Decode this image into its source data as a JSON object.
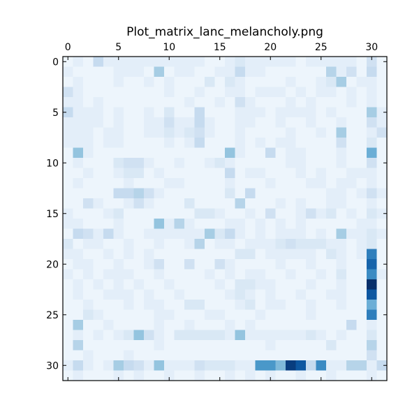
{
  "chart_data": {
    "type": "heatmap",
    "title": "Plot_matrix_lanc_melancholy.png",
    "xlabel": "",
    "ylabel": "",
    "colormap": "Blues",
    "color_low": "#f7fbff",
    "color_high": "#08306b",
    "x_axis_position": "top",
    "x_ticks": [
      0,
      5,
      10,
      15,
      20,
      25,
      30
    ],
    "y_ticks": [
      0,
      5,
      10,
      15,
      20,
      25,
      30
    ],
    "xlim": [
      -0.5,
      31.5
    ],
    "ylim": [
      31.5,
      -0.5
    ],
    "rows": 32,
    "cols": 32,
    "value_scale": [
      0,
      1
    ],
    "grid": false,
    "legend": "none",
    "matrix": [
      [
        0.05,
        0.1,
        0.05,
        0.25,
        0.1,
        0.1,
        0.1,
        0.1,
        0.1,
        0.1,
        0.1,
        0.1,
        0.1,
        0.1,
        0.05,
        0.05,
        0.1,
        0.15,
        0.1,
        0.1,
        0.1,
        0.1,
        0.1,
        0.05,
        0.1,
        0.1,
        0.1,
        0.1,
        0.1,
        0.05,
        0.2,
        0.05
      ],
      [
        0.1,
        0.05,
        0.05,
        0.05,
        0.05,
        0.1,
        0.1,
        0.1,
        0.05,
        0.35,
        0.05,
        0.1,
        0.1,
        0.05,
        0.05,
        0.1,
        0.1,
        0.25,
        0.1,
        0.1,
        0.05,
        0.05,
        0.05,
        0.05,
        0.05,
        0.05,
        0.3,
        0.1,
        0.2,
        0.05,
        0.25,
        0.05
      ],
      [
        0.05,
        0.1,
        0.05,
        0.05,
        0.05,
        0.1,
        0.05,
        0.05,
        0.1,
        0.05,
        0.1,
        0.05,
        0.05,
        0.05,
        0.15,
        0.05,
        0.15,
        0.1,
        0.05,
        0.05,
        0.05,
        0.05,
        0.1,
        0.05,
        0.05,
        0.1,
        0.15,
        0.35,
        0.05,
        0.1,
        0.1,
        0.05
      ],
      [
        0.2,
        0.1,
        0.05,
        0.05,
        0.05,
        0.05,
        0.05,
        0.05,
        0.05,
        0.05,
        0.1,
        0.05,
        0.05,
        0.1,
        0.05,
        0.05,
        0.1,
        0.1,
        0.05,
        0.1,
        0.1,
        0.1,
        0.05,
        0.1,
        0.05,
        0.1,
        0.1,
        0.05,
        0.1,
        0.05,
        0.1,
        0.05
      ],
      [
        0.1,
        0.1,
        0.05,
        0.1,
        0.05,
        0.05,
        0.05,
        0.05,
        0.05,
        0.05,
        0.05,
        0.05,
        0.1,
        0.05,
        0.05,
        0.1,
        0.05,
        0.2,
        0.1,
        0.05,
        0.05,
        0.05,
        0.1,
        0.05,
        0.1,
        0.05,
        0.05,
        0.05,
        0.1,
        0.05,
        0.1,
        0.05
      ],
      [
        0.25,
        0.1,
        0.1,
        0.1,
        0.05,
        0.1,
        0.05,
        0.05,
        0.1,
        0.05,
        0.15,
        0.05,
        0.05,
        0.25,
        0.05,
        0.05,
        0.05,
        0.1,
        0.1,
        0.1,
        0.05,
        0.1,
        0.1,
        0.1,
        0.1,
        0.05,
        0.1,
        0.05,
        0.05,
        0.05,
        0.35,
        0.1
      ],
      [
        0.1,
        0.1,
        0.1,
        0.1,
        0.05,
        0.1,
        0.05,
        0.05,
        0.1,
        0.1,
        0.2,
        0.1,
        0.1,
        0.25,
        0.1,
        0.05,
        0.05,
        0.1,
        0.1,
        0.05,
        0.05,
        0.1,
        0.05,
        0.05,
        0.1,
        0.05,
        0.05,
        0.1,
        0.05,
        0.05,
        0.2,
        0.1
      ],
      [
        0.1,
        0.1,
        0.1,
        0.05,
        0.1,
        0.1,
        0.05,
        0.05,
        0.1,
        0.1,
        0.15,
        0.1,
        0.15,
        0.2,
        0.1,
        0.05,
        0.05,
        0.1,
        0.05,
        0.05,
        0.05,
        0.05,
        0.1,
        0.05,
        0.05,
        0.1,
        0.05,
        0.35,
        0.05,
        0.05,
        0.1,
        0.2
      ],
      [
        0.1,
        0.1,
        0.1,
        0.05,
        0.1,
        0.1,
        0.05,
        0.05,
        0.05,
        0.05,
        0.1,
        0.05,
        0.1,
        0.25,
        0.05,
        0.05,
        0.05,
        0.1,
        0.05,
        0.1,
        0.05,
        0.1,
        0.1,
        0.05,
        0.05,
        0.05,
        0.05,
        0.2,
        0.05,
        0.05,
        0.15,
        0.05
      ],
      [
        0.05,
        0.4,
        0.1,
        0.05,
        0.05,
        0.05,
        0.05,
        0.05,
        0.05,
        0.05,
        0.05,
        0.05,
        0.05,
        0.05,
        0.05,
        0.05,
        0.4,
        0.1,
        0.05,
        0.05,
        0.25,
        0.05,
        0.1,
        0.1,
        0.05,
        0.05,
        0.05,
        0.1,
        0.05,
        0.05,
        0.5,
        0.05
      ],
      [
        0.05,
        0.1,
        0.05,
        0.05,
        0.05,
        0.15,
        0.2,
        0.2,
        0.1,
        0.05,
        0.05,
        0.1,
        0.05,
        0.05,
        0.1,
        0.15,
        0.1,
        0.05,
        0.05,
        0.05,
        0.05,
        0.05,
        0.1,
        0.1,
        0.05,
        0.05,
        0.05,
        0.1,
        0.05,
        0.05,
        0.2,
        0.05
      ],
      [
        0.05,
        0.05,
        0.1,
        0.05,
        0.05,
        0.1,
        0.15,
        0.15,
        0.05,
        0.1,
        0.05,
        0.05,
        0.05,
        0.05,
        0.05,
        0.05,
        0.25,
        0.05,
        0.1,
        0.1,
        0.05,
        0.05,
        0.05,
        0.1,
        0.05,
        0.1,
        0.05,
        0.05,
        0.1,
        0.1,
        0.1,
        0.05
      ],
      [
        0.05,
        0.1,
        0.05,
        0.05,
        0.05,
        0.05,
        0.1,
        0.05,
        0.05,
        0.05,
        0.1,
        0.1,
        0.05,
        0.05,
        0.05,
        0.05,
        0.1,
        0.05,
        0.05,
        0.05,
        0.1,
        0.05,
        0.05,
        0.05,
        0.1,
        0.1,
        0.05,
        0.1,
        0.1,
        0.05,
        0.1,
        0.05
      ],
      [
        0.05,
        0.05,
        0.05,
        0.05,
        0.05,
        0.25,
        0.25,
        0.3,
        0.2,
        0.1,
        0.05,
        0.05,
        0.05,
        0.05,
        0.05,
        0.05,
        0.15,
        0.05,
        0.25,
        0.05,
        0.05,
        0.05,
        0.05,
        0.05,
        0.05,
        0.05,
        0.1,
        0.1,
        0.05,
        0.1,
        0.2,
        0.1
      ],
      [
        0.05,
        0.05,
        0.2,
        0.1,
        0.05,
        0.05,
        0.1,
        0.2,
        0.1,
        0.05,
        0.05,
        0.05,
        0.15,
        0.05,
        0.05,
        0.05,
        0.05,
        0.3,
        0.05,
        0.05,
        0.05,
        0.1,
        0.05,
        0.1,
        0.05,
        0.05,
        0.1,
        0.1,
        0.05,
        0.05,
        0.1,
        0.05
      ],
      [
        0.1,
        0.05,
        0.05,
        0.05,
        0.1,
        0.15,
        0.05,
        0.05,
        0.05,
        0.05,
        0.05,
        0.05,
        0.05,
        0.15,
        0.15,
        0.1,
        0.05,
        0.05,
        0.1,
        0.05,
        0.2,
        0.05,
        0.05,
        0.1,
        0.2,
        0.1,
        0.15,
        0.05,
        0.1,
        0.05,
        0.15,
        0.1
      ],
      [
        0.1,
        0.1,
        0.05,
        0.05,
        0.05,
        0.1,
        0.05,
        0.05,
        0.05,
        0.4,
        0.1,
        0.3,
        0.1,
        0.05,
        0.05,
        0.05,
        0.1,
        0.1,
        0.05,
        0.1,
        0.05,
        0.1,
        0.05,
        0.1,
        0.05,
        0.05,
        0.05,
        0.05,
        0.05,
        0.1,
        0.1,
        0.05
      ],
      [
        0.05,
        0.25,
        0.2,
        0.1,
        0.25,
        0.1,
        0.05,
        0.05,
        0.1,
        0.1,
        0.1,
        0.1,
        0.1,
        0.1,
        0.35,
        0.15,
        0.25,
        0.1,
        0.05,
        0.1,
        0.05,
        0.1,
        0.1,
        0.1,
        0.05,
        0.1,
        0.05,
        0.35,
        0.1,
        0.1,
        0.15,
        0.1
      ],
      [
        0.15,
        0.05,
        0.1,
        0.1,
        0.05,
        0.05,
        0.1,
        0.05,
        0.05,
        0.1,
        0.05,
        0.05,
        0.1,
        0.3,
        0.05,
        0.1,
        0.1,
        0.05,
        0.1,
        0.1,
        0.1,
        0.15,
        0.2,
        0.15,
        0.15,
        0.15,
        0.1,
        0.1,
        0.05,
        0.1,
        0.15,
        0.05
      ],
      [
        0.1,
        0.1,
        0.05,
        0.05,
        0.1,
        0.05,
        0.1,
        0.05,
        0.1,
        0.05,
        0.05,
        0.05,
        0.05,
        0.05,
        0.05,
        0.05,
        0.05,
        0.15,
        0.15,
        0.05,
        0.1,
        0.1,
        0.1,
        0.1,
        0.1,
        0.05,
        0.15,
        0.1,
        0.05,
        0.1,
        0.7,
        0.05
      ],
      [
        0.05,
        0.1,
        0.1,
        0.05,
        0.05,
        0.1,
        0.05,
        0.05,
        0.1,
        0.2,
        0.05,
        0.05,
        0.2,
        0.05,
        0.05,
        0.2,
        0.1,
        0.05,
        0.05,
        0.05,
        0.05,
        0.1,
        0.05,
        0.05,
        0.1,
        0.05,
        0.05,
        0.1,
        0.05,
        0.05,
        0.8,
        0.05
      ],
      [
        0.1,
        0.05,
        0.1,
        0.05,
        0.1,
        0.1,
        0.1,
        0.05,
        0.05,
        0.1,
        0.05,
        0.05,
        0.05,
        0.05,
        0.1,
        0.05,
        0.1,
        0.05,
        0.1,
        0.1,
        0.05,
        0.05,
        0.1,
        0.05,
        0.05,
        0.1,
        0.05,
        0.15,
        0.05,
        0.05,
        0.65,
        0.1
      ],
      [
        0.05,
        0.1,
        0.05,
        0.1,
        0.05,
        0.1,
        0.05,
        0.1,
        0.05,
        0.05,
        0.1,
        0.05,
        0.05,
        0.05,
        0.05,
        0.1,
        0.05,
        0.15,
        0.15,
        0.1,
        0.1,
        0.05,
        0.05,
        0.05,
        0.1,
        0.05,
        0.05,
        0.1,
        0.05,
        0.05,
        1.0,
        0.05
      ],
      [
        0.05,
        0.1,
        0.05,
        0.05,
        0.1,
        0.1,
        0.1,
        0.05,
        0.1,
        0.05,
        0.05,
        0.1,
        0.05,
        0.05,
        0.05,
        0.05,
        0.1,
        0.15,
        0.1,
        0.05,
        0.1,
        0.05,
        0.05,
        0.1,
        0.05,
        0.05,
        0.1,
        0.1,
        0.05,
        0.05,
        0.85,
        0.05
      ],
      [
        0.05,
        0.05,
        0.1,
        0.05,
        0.05,
        0.05,
        0.1,
        0.05,
        0.1,
        0.1,
        0.05,
        0.05,
        0.15,
        0.15,
        0.05,
        0.05,
        0.05,
        0.1,
        0.15,
        0.05,
        0.1,
        0.1,
        0.05,
        0.05,
        0.1,
        0.05,
        0.05,
        0.1,
        0.05,
        0.05,
        0.5,
        0.05
      ],
      [
        0.05,
        0.05,
        0.15,
        0.1,
        0.05,
        0.05,
        0.05,
        0.05,
        0.05,
        0.1,
        0.1,
        0.05,
        0.05,
        0.05,
        0.1,
        0.1,
        0.05,
        0.05,
        0.05,
        0.1,
        0.05,
        0.05,
        0.05,
        0.05,
        0.1,
        0.05,
        0.05,
        0.05,
        0.05,
        0.05,
        0.7,
        0.05
      ],
      [
        0.05,
        0.35,
        0.05,
        0.05,
        0.1,
        0.05,
        0.05,
        0.05,
        0.05,
        0.1,
        0.05,
        0.05,
        0.1,
        0.05,
        0.05,
        0.05,
        0.1,
        0.05,
        0.1,
        0.05,
        0.05,
        0.05,
        0.05,
        0.05,
        0.05,
        0.05,
        0.05,
        0.05,
        0.25,
        0.05,
        0.1,
        0.05
      ],
      [
        0.05,
        0.1,
        0.05,
        0.1,
        0.05,
        0.1,
        0.15,
        0.4,
        0.2,
        0.1,
        0.05,
        0.15,
        0.15,
        0.15,
        0.15,
        0.15,
        0.1,
        0.4,
        0.1,
        0.1,
        0.1,
        0.1,
        0.1,
        0.1,
        0.15,
        0.1,
        0.05,
        0.1,
        0.05,
        0.05,
        0.15,
        0.05
      ],
      [
        0.05,
        0.3,
        0.05,
        0.05,
        0.05,
        0.05,
        0.05,
        0.05,
        0.05,
        0.1,
        0.05,
        0.05,
        0.05,
        0.05,
        0.05,
        0.05,
        0.05,
        0.05,
        0.05,
        0.05,
        0.1,
        0.05,
        0.05,
        0.05,
        0.05,
        0.05,
        0.15,
        0.05,
        0.05,
        0.05,
        0.3,
        0.05
      ],
      [
        0.05,
        0.05,
        0.1,
        0.05,
        0.05,
        0.05,
        0.1,
        0.05,
        0.05,
        0.05,
        0.05,
        0.05,
        0.05,
        0.05,
        0.05,
        0.05,
        0.05,
        0.05,
        0.05,
        0.05,
        0.05,
        0.05,
        0.05,
        0.05,
        0.05,
        0.05,
        0.05,
        0.05,
        0.05,
        0.05,
        0.2,
        0.05
      ],
      [
        0.1,
        0.25,
        0.1,
        0.05,
        0.1,
        0.35,
        0.25,
        0.2,
        0.1,
        0.4,
        0.1,
        0.1,
        0.1,
        0.2,
        0.15,
        0.15,
        0.15,
        0.1,
        0.1,
        0.6,
        0.6,
        0.45,
        0.95,
        0.85,
        0.25,
        0.65,
        0.1,
        0.1,
        0.3,
        0.3,
        0.1,
        0.25
      ],
      [
        0.05,
        0.1,
        0.05,
        0.05,
        0.05,
        0.1,
        0.05,
        0.1,
        0.05,
        0.05,
        0.1,
        0.05,
        0.05,
        0.1,
        0.05,
        0.05,
        0.1,
        0.05,
        0.1,
        0.05,
        0.1,
        0.05,
        0.05,
        0.1,
        0.05,
        0.05,
        0.1,
        0.05,
        0.05,
        0.05,
        0.1,
        0.05
      ]
    ]
  }
}
